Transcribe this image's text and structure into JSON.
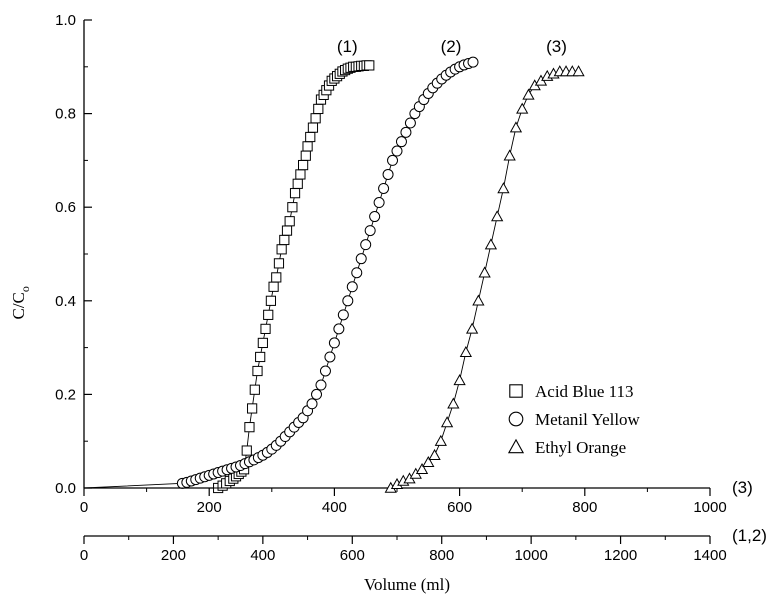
{
  "chart_data": {
    "type": "scatter",
    "title": "",
    "xlabel": "Volume (ml)",
    "ylabel_main": "C/C",
    "ylabel_sub": "o",
    "ylim": [
      0,
      1.0
    ],
    "y_ticks": [
      "0.0",
      "0.2",
      "0.4",
      "0.6",
      "0.8",
      "1.0"
    ],
    "x_axes": [
      {
        "id": "axis-3",
        "applies_to_label": "(3)",
        "xlim": [
          0,
          1000
        ],
        "ticks": [
          "0",
          "200",
          "400",
          "600",
          "800",
          "1000"
        ]
      },
      {
        "id": "axis-12",
        "applies_to_label": "(1,2)",
        "xlim": [
          0,
          1400
        ],
        "ticks": [
          "0",
          "200",
          "400",
          "600",
          "800",
          "1000",
          "1200",
          "1400"
        ]
      }
    ],
    "legend": {
      "placement": "bottom-right"
    },
    "series": [
      {
        "name": "Acid Blue 113",
        "curve_label": "(1)",
        "marker": "square",
        "x_axis": "axis-12",
        "x": [
          0,
          300,
          310,
          318,
          326,
          334,
          340,
          346,
          352,
          358,
          364,
          370,
          376,
          382,
          388,
          394,
          400,
          406,
          412,
          418,
          424,
          430,
          436,
          442,
          448,
          454,
          460,
          466,
          472,
          478,
          484,
          490,
          496,
          500,
          506,
          512,
          518,
          524,
          530,
          536,
          542,
          548,
          554,
          560,
          566,
          572,
          578,
          584,
          590,
          596,
          602,
          608,
          614,
          620,
          626,
          632,
          638
        ],
        "y": [
          0,
          0.0,
          0.005,
          0.01,
          0.015,
          0.02,
          0.025,
          0.03,
          0.035,
          0.04,
          0.08,
          0.13,
          0.17,
          0.21,
          0.25,
          0.28,
          0.31,
          0.34,
          0.37,
          0.4,
          0.43,
          0.45,
          0.48,
          0.51,
          0.53,
          0.55,
          0.57,
          0.6,
          0.63,
          0.65,
          0.67,
          0.69,
          0.71,
          0.73,
          0.75,
          0.77,
          0.79,
          0.81,
          0.83,
          0.84,
          0.85,
          0.86,
          0.87,
          0.875,
          0.88,
          0.885,
          0.89,
          0.893,
          0.896,
          0.898,
          0.9,
          0.9,
          0.901,
          0.902,
          0.902,
          0.903,
          0.903
        ]
      },
      {
        "name": "Metanil Yellow",
        "curve_label": "(2)",
        "marker": "circle",
        "x_axis": "axis-12",
        "x": [
          0,
          220,
          230,
          240,
          250,
          260,
          270,
          280,
          290,
          300,
          310,
          320,
          330,
          340,
          350,
          360,
          370,
          380,
          390,
          400,
          410,
          420,
          430,
          440,
          450,
          460,
          470,
          480,
          490,
          500,
          510,
          520,
          530,
          540,
          550,
          560,
          570,
          580,
          590,
          600,
          610,
          620,
          630,
          640,
          650,
          660,
          670,
          680,
          690,
          700,
          710,
          720,
          730,
          740,
          750,
          760,
          770,
          780,
          790,
          800,
          810,
          820,
          830,
          840,
          850,
          860,
          870
        ],
        "y": [
          0,
          0.01,
          0.012,
          0.015,
          0.018,
          0.021,
          0.024,
          0.027,
          0.03,
          0.033,
          0.036,
          0.039,
          0.042,
          0.045,
          0.048,
          0.052,
          0.056,
          0.06,
          0.065,
          0.07,
          0.076,
          0.083,
          0.091,
          0.1,
          0.11,
          0.12,
          0.13,
          0.14,
          0.15,
          0.165,
          0.18,
          0.2,
          0.22,
          0.25,
          0.28,
          0.31,
          0.34,
          0.37,
          0.4,
          0.43,
          0.46,
          0.49,
          0.52,
          0.55,
          0.58,
          0.61,
          0.64,
          0.67,
          0.7,
          0.72,
          0.74,
          0.76,
          0.78,
          0.8,
          0.815,
          0.83,
          0.843,
          0.855,
          0.865,
          0.874,
          0.882,
          0.889,
          0.895,
          0.9,
          0.904,
          0.907,
          0.91
        ]
      },
      {
        "name": "Ethyl Orange",
        "curve_label": "(3)",
        "marker": "triangle",
        "x_axis": "axis-3",
        "x": [
          0,
          490,
          500,
          510,
          520,
          530,
          540,
          550,
          560,
          570,
          580,
          590,
          600,
          610,
          620,
          630,
          640,
          650,
          660,
          670,
          680,
          690,
          700,
          710,
          720,
          730,
          740,
          750,
          760,
          770,
          780,
          790
        ],
        "y": [
          0,
          0.0,
          0.008,
          0.015,
          0.02,
          0.03,
          0.04,
          0.055,
          0.07,
          0.1,
          0.14,
          0.18,
          0.23,
          0.29,
          0.34,
          0.4,
          0.46,
          0.52,
          0.58,
          0.64,
          0.71,
          0.77,
          0.81,
          0.84,
          0.86,
          0.87,
          0.88,
          0.885,
          0.89,
          0.89,
          0.89,
          0.89
        ]
      }
    ]
  }
}
